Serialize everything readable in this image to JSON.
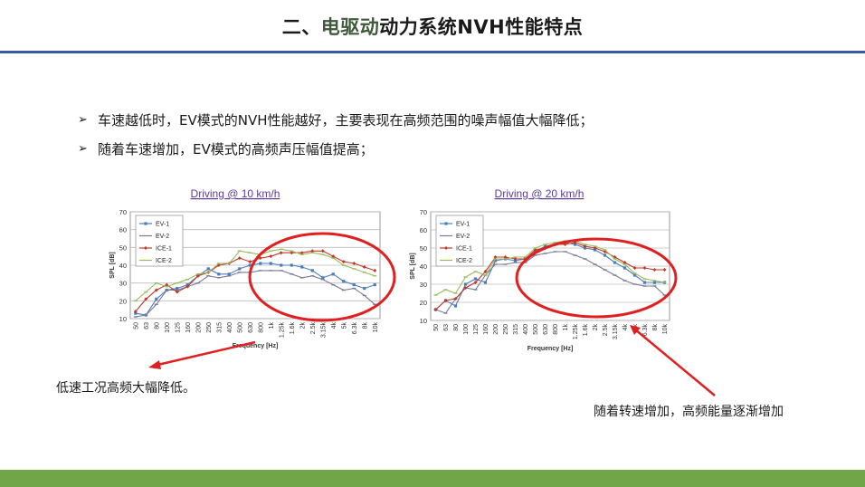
{
  "title": {
    "part1": "二、",
    "part2": "电驱动",
    "part3": "动力系统NVH性能特点"
  },
  "bullets": [
    {
      "marker": "➢",
      "text": "车速越低时，EV模式的NVH性能越好，主要表现在高频范围的噪声幅值大幅降低；"
    },
    {
      "marker": "➢",
      "text": "随着车速增加，EV模式的高频声压幅值提高；"
    }
  ],
  "annotations": {
    "left": "低速工况高频大幅降低。",
    "right": "随着转速增加，高频能量逐渐增加"
  },
  "colors": {
    "title_rule": "#3a5a9c",
    "footer": "#70a548",
    "ellipse": "#e02020",
    "EV-1": "#4a7ebb",
    "EV-2": "#7a7a9a",
    "ICE-1": "#c0392b",
    "ICE-2": "#9bbb59"
  },
  "chart_data": [
    {
      "type": "line",
      "title": "Driving @ 10 km/h",
      "xlabel": "Frequency [Hz]",
      "ylabel": "SPL [dB]",
      "ylim": [
        10,
        70
      ],
      "yticks": [
        10,
        20,
        30,
        40,
        50,
        60,
        70
      ],
      "legend": "top-left",
      "categories": [
        "50",
        "63",
        "80",
        "100",
        "125",
        "160",
        "200",
        "250",
        "315",
        "400",
        "500",
        "630",
        "800",
        "1k",
        "1.25k",
        "1.6k",
        "2k",
        "2.5k",
        "3.15k",
        "4k",
        "5k",
        "6.3k",
        "8k",
        "10k"
      ],
      "series": [
        {
          "name": "EV-1",
          "values": [
            13,
            12,
            21,
            26,
            27,
            29,
            34,
            38,
            35,
            35,
            38,
            40,
            41,
            41,
            40,
            40,
            39,
            37,
            33,
            35,
            31,
            29,
            27,
            29
          ]
        },
        {
          "name": "EV-2",
          "values": [
            11,
            12,
            18,
            26,
            26,
            28,
            30,
            34,
            33,
            34,
            36,
            36,
            37,
            37,
            37,
            35,
            33,
            34,
            32,
            29,
            26,
            27,
            23,
            18
          ]
        },
        {
          "name": "ICE-1",
          "values": [
            14,
            21,
            26,
            29,
            25,
            28,
            34,
            36,
            40,
            41,
            44,
            42,
            44,
            45,
            47,
            47,
            47,
            48,
            48,
            45,
            42,
            41,
            39,
            37
          ]
        },
        {
          "name": "ICE-2",
          "values": [
            20,
            25,
            30,
            28,
            30,
            32,
            35,
            36,
            41,
            41,
            48,
            47,
            46,
            48,
            49,
            48,
            46,
            47,
            46,
            44,
            40,
            38,
            36,
            34
          ]
        }
      ]
    },
    {
      "type": "line",
      "title": "Driving @ 20 km/h",
      "xlabel": "Frequency [Hz]",
      "ylabel": "SPL [dB]",
      "ylim": [
        10,
        70
      ],
      "yticks": [
        10,
        20,
        30,
        40,
        50,
        60,
        70
      ],
      "legend": "top-left",
      "categories": [
        "50",
        "63",
        "80",
        "100",
        "125",
        "160",
        "200",
        "250",
        "315",
        "400",
        "500",
        "630",
        "800",
        "1k",
        "1.25k",
        "1.6k",
        "2k",
        "2.5k",
        "3.15k",
        "4k",
        "5k",
        "6.3k",
        "8k",
        "10k"
      ],
      "series": [
        {
          "name": "EV-1",
          "values": [
            16,
            21,
            18,
            30,
            33,
            31,
            43,
            44,
            43,
            44,
            48,
            51,
            52,
            53,
            52,
            50,
            49,
            46,
            42,
            39,
            35,
            31,
            31,
            31
          ]
        },
        {
          "name": "EV-2",
          "values": [
            16,
            14,
            22,
            28,
            27,
            35,
            41,
            41,
            42,
            42,
            46,
            47,
            48,
            48,
            46,
            44,
            41,
            38,
            35,
            32,
            30,
            29,
            29,
            24
          ]
        },
        {
          "name": "ICE-1",
          "values": [
            16,
            21,
            22,
            28,
            31,
            37,
            45,
            45,
            44,
            44,
            49,
            50,
            52,
            52,
            53,
            51,
            50,
            48,
            45,
            42,
            39,
            39,
            38,
            38
          ]
        },
        {
          "name": "ICE-2",
          "values": [
            24,
            27,
            25,
            34,
            37,
            35,
            44,
            44,
            45,
            45,
            50,
            52,
            53,
            54,
            54,
            52,
            51,
            49,
            44,
            41,
            36,
            33,
            32,
            31
          ]
        }
      ]
    }
  ]
}
